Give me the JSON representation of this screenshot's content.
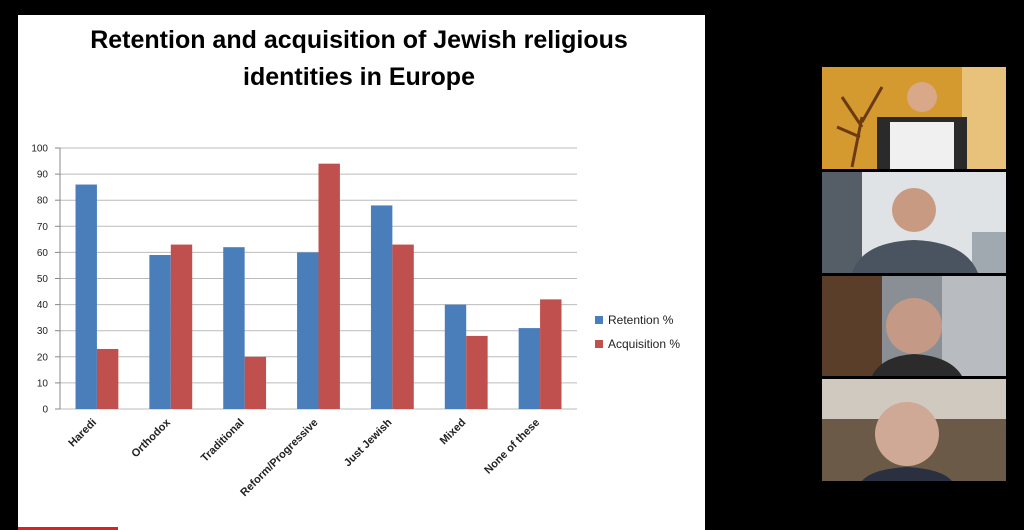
{
  "chart_data": {
    "type": "bar",
    "title": "Retention and acquisition of Jewish religious identities in Europe",
    "categories": [
      "Haredi",
      "Orthodox",
      "Traditional",
      "Reform/Progressive",
      "Just Jewish",
      "Mixed",
      "None of these"
    ],
    "series": [
      {
        "name": "Retention %",
        "color": "#4a7ebb",
        "values": [
          86,
          59,
          62,
          60,
          78,
          40,
          31
        ]
      },
      {
        "name": "Acquisition %",
        "color": "#c0504d",
        "values": [
          23,
          63,
          20,
          94,
          63,
          28,
          42
        ]
      }
    ],
    "ylim": [
      0,
      100
    ],
    "yticks": [
      0,
      10,
      20,
      30,
      40,
      50,
      60,
      70,
      80,
      90,
      100
    ],
    "grid": true,
    "legend": "right"
  }
}
